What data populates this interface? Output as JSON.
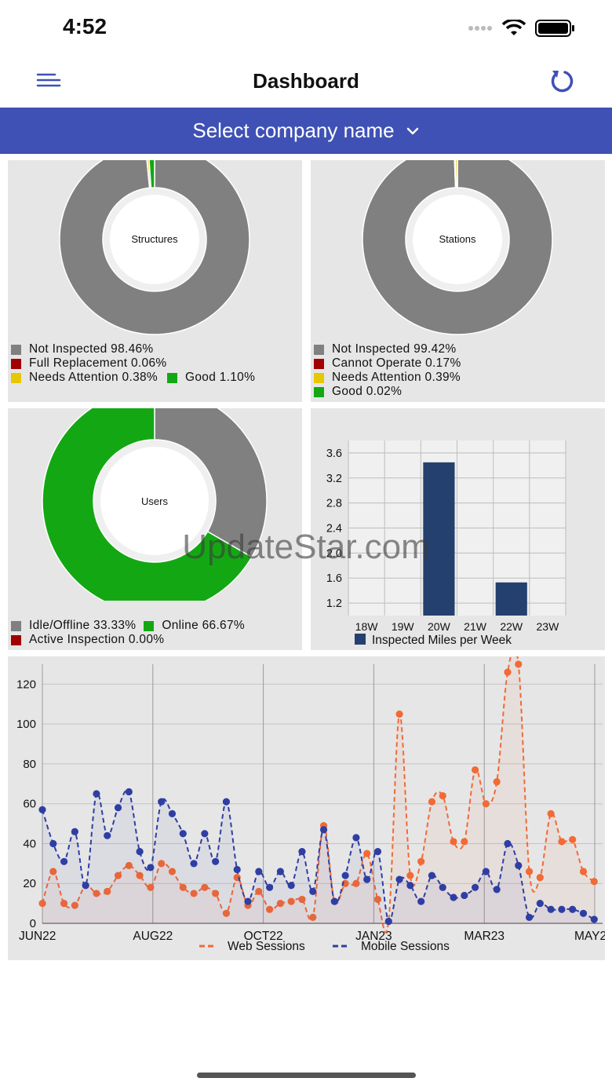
{
  "status": {
    "time": "4:52"
  },
  "nav": {
    "title": "Dashboard",
    "menu_icon": "menu-icon",
    "refresh_icon": "refresh-icon"
  },
  "company_select": {
    "label": "Select company name",
    "icon": "chevron-down-icon"
  },
  "structures": {
    "center_label": "Structures",
    "legend": [
      {
        "label": "Not Inspected 98.46%",
        "color": "#808080"
      },
      {
        "label": "Full Replacement 0.06%",
        "color": "#a00000"
      },
      {
        "label": "Needs Attention 0.38%",
        "color": "#e6c800"
      },
      {
        "label": "Good 1.10%",
        "color": "#13a813"
      }
    ],
    "values": [
      98.46,
      0.06,
      0.38,
      1.1
    ]
  },
  "stations": {
    "center_label": "Stations",
    "legend": [
      {
        "label": "Not Inspected 99.42%",
        "color": "#808080"
      },
      {
        "label": "Cannot Operate 0.17%",
        "color": "#a00000"
      },
      {
        "label": "Needs Attention 0.39%",
        "color": "#e6c800"
      },
      {
        "label": "Good 0.02%",
        "color": "#13a813"
      }
    ],
    "values": [
      99.42,
      0.17,
      0.39,
      0.02
    ]
  },
  "users": {
    "center_label": "Users",
    "legend": [
      {
        "label": "Idle/Offline 33.33%",
        "color": "#808080"
      },
      {
        "label": "Online 66.67%",
        "color": "#13a813"
      },
      {
        "label": "Active Inspection 0.00%",
        "color": "#a00000"
      }
    ],
    "values": [
      33.33,
      66.67,
      0
    ]
  },
  "chart_data": [
    {
      "type": "bar",
      "categories": [
        "18W",
        "19W",
        "20W",
        "21W",
        "22W",
        "23W"
      ],
      "values": [
        0.8,
        0.8,
        3.45,
        0.8,
        1.53,
        0.8
      ],
      "ylim": [
        1.0,
        3.8
      ],
      "yticks": [
        "1.2",
        "1.6",
        "2.0",
        "2.4",
        "2.8",
        "3.2",
        "3.6"
      ],
      "legend": "Inspected Miles per Week",
      "color": "#24406e"
    },
    {
      "type": "line",
      "xlabels": [
        "JUN22",
        "AUG22",
        "OCT22",
        "JAN23",
        "MAR23",
        "MAY23"
      ],
      "yticks": [
        "0",
        "20",
        "40",
        "60",
        "80",
        "100",
        "120"
      ],
      "ylim": [
        0,
        130
      ],
      "series": [
        {
          "name": "Web Sessions",
          "color": "#f26a35",
          "values": [
            10,
            26,
            10,
            9,
            19,
            15,
            16,
            24,
            29,
            24,
            18,
            30,
            26,
            18,
            15,
            18,
            15,
            5,
            23,
            9,
            16,
            7,
            10,
            11,
            12,
            3,
            49,
            11,
            20,
            20,
            35,
            12,
            1,
            105,
            24,
            31,
            61,
            64,
            41,
            41,
            77,
            60,
            71,
            126,
            130,
            26,
            23,
            55,
            41,
            42,
            26,
            21
          ]
        },
        {
          "name": "Mobile Sessions",
          "color": "#2f3ea3",
          "values": [
            57,
            40,
            31,
            46,
            19,
            65,
            44,
            58,
            66,
            36,
            28,
            61,
            55,
            45,
            30,
            45,
            31,
            61,
            27,
            11,
            26,
            18,
            26,
            19,
            36,
            16,
            47,
            11,
            24,
            43,
            22,
            36,
            1,
            22,
            19,
            11,
            24,
            18,
            13,
            14,
            18,
            26,
            17,
            40,
            29,
            3,
            10,
            7,
            7,
            7,
            5,
            2
          ]
        }
      ]
    }
  ],
  "watermark": "UpdateStar.com"
}
